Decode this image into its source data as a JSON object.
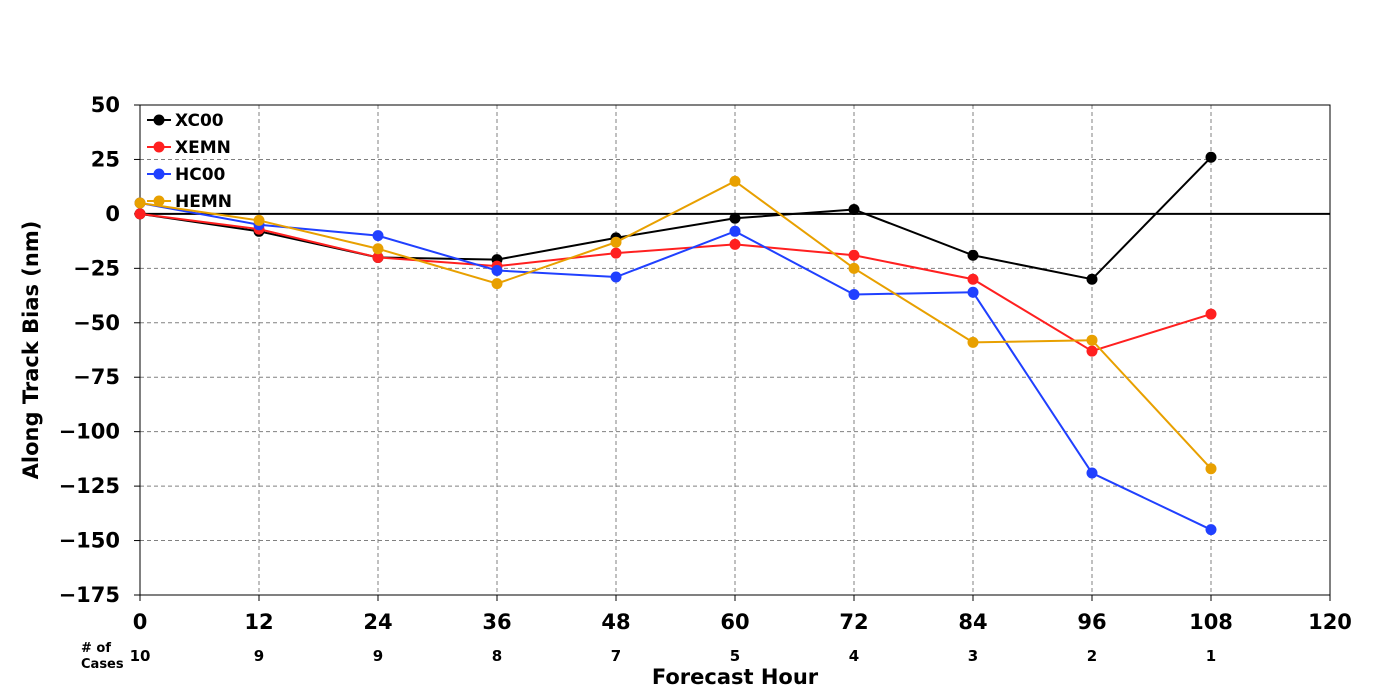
{
  "chart_data": {
    "type": "line",
    "xlabel": "Forecast Hour",
    "ylabel": "Along Track Bias (nm)",
    "xlim": [
      0,
      120
    ],
    "ylim": [
      -175,
      50
    ],
    "x_ticks": [
      0,
      12,
      24,
      36,
      48,
      60,
      72,
      84,
      96,
      108,
      120
    ],
    "y_ticks": [
      50,
      25,
      0,
      -25,
      -50,
      -75,
      -100,
      -125,
      -150,
      -175
    ],
    "x_tick_labels": [
      "0",
      "12",
      "24",
      "36",
      "48",
      "60",
      "72",
      "84",
      "96",
      "108",
      "120"
    ],
    "y_tick_labels": [
      "50",
      "25",
      "0",
      "−25",
      "−50",
      "−75",
      "−100",
      "−125",
      "−150",
      "−175"
    ],
    "grid": true,
    "legend_position": "upper-left",
    "cases_title_line1": "# of",
    "cases_title_line2": "Cases",
    "cases": [
      {
        "x": 0,
        "label": "10"
      },
      {
        "x": 12,
        "label": "9"
      },
      {
        "x": 24,
        "label": "9"
      },
      {
        "x": 36,
        "label": "8"
      },
      {
        "x": 48,
        "label": "7"
      },
      {
        "x": 60,
        "label": "5"
      },
      {
        "x": 72,
        "label": "4"
      },
      {
        "x": 84,
        "label": "3"
      },
      {
        "x": 96,
        "label": "2"
      },
      {
        "x": 108,
        "label": "1"
      }
    ],
    "x": [
      0,
      12,
      24,
      36,
      48,
      60,
      72,
      84,
      96,
      108
    ],
    "series": [
      {
        "name": "XC00",
        "color": "#000000",
        "values": [
          0,
          -8,
          -20,
          -21,
          -11,
          -2,
          2,
          -19,
          -30,
          26
        ]
      },
      {
        "name": "XEMN",
        "color": "#ff2020",
        "values": [
          0,
          -7,
          -20,
          -24,
          -18,
          -14,
          -19,
          -30,
          -63,
          -46
        ]
      },
      {
        "name": "HC00",
        "color": "#2040ff",
        "values": [
          5,
          -5,
          -10,
          -26,
          -29,
          -8,
          -37,
          -36,
          -119,
          -145
        ]
      },
      {
        "name": "HEMN",
        "color": "#e8a000",
        "values": [
          5,
          -3,
          -16,
          -32,
          -13,
          15,
          -25,
          -59,
          -58,
          -117
        ]
      }
    ]
  }
}
